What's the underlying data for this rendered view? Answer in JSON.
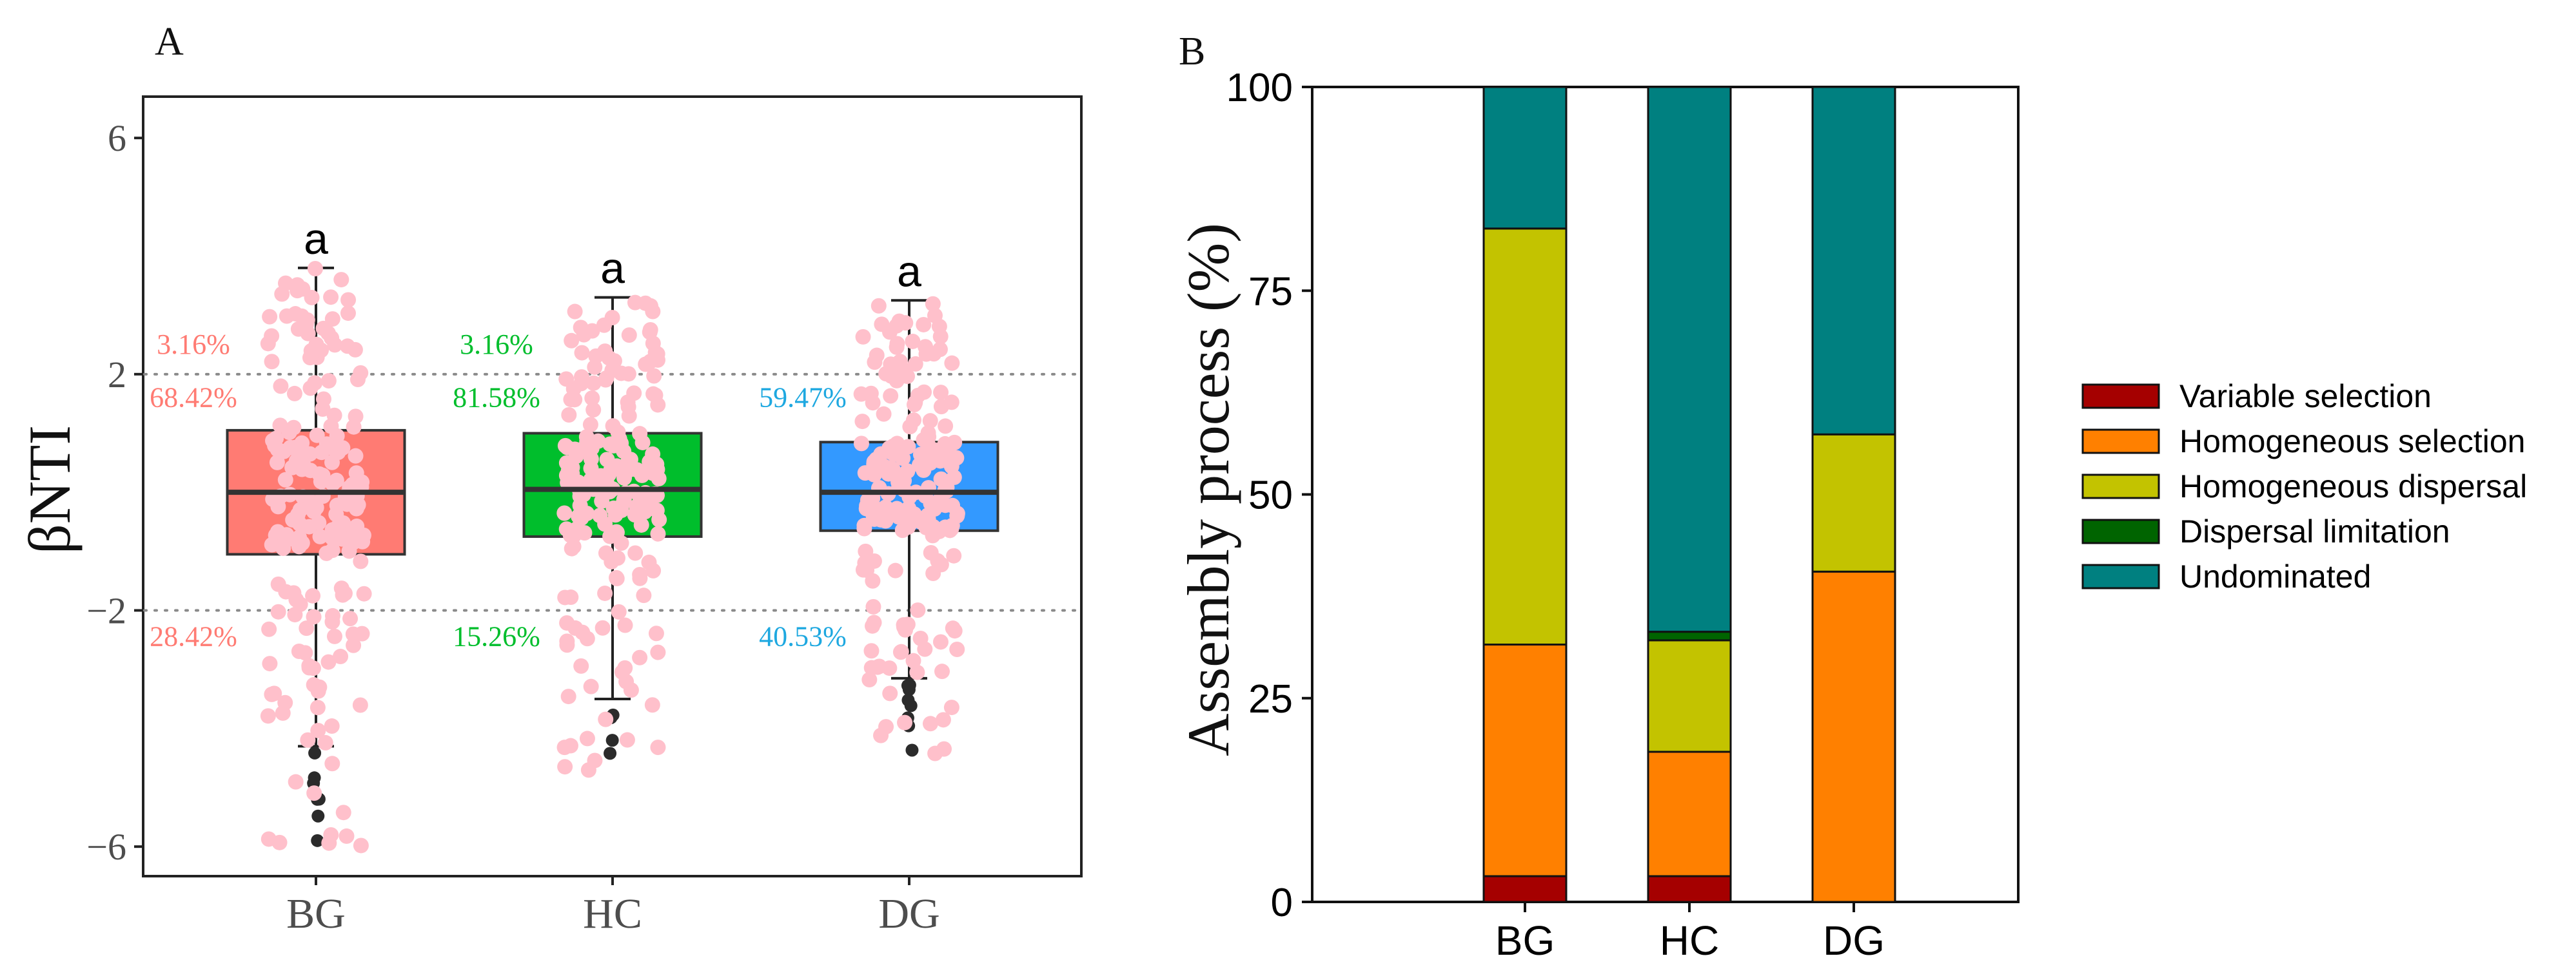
{
  "chart_data": [
    {
      "panel": "A",
      "type": "box",
      "ylabel": "βNTI",
      "ylim": [
        -6.5,
        6.7
      ],
      "yticks": [
        -6,
        -2,
        2,
        6
      ],
      "reference_lines": [
        2,
        -2
      ],
      "categories": [
        "BG",
        "HC",
        "DG"
      ],
      "colors": {
        "BG": "#ff7b73",
        "HC": "#00be2c",
        "DG": "#3399ff",
        "points": "#ffc0cb",
        "outliers": "#2b2b2b"
      },
      "boxes": [
        {
          "name": "BG",
          "whisker_low": -4.3,
          "q1": -1.05,
          "median": 0.0,
          "q3": 1.05,
          "whisker_high": 3.8,
          "sig": "a",
          "annotations": {
            "above": "3.16%",
            "middle": "68.42%",
            "below": "28.42%"
          }
        },
        {
          "name": "HC",
          "whisker_low": -3.5,
          "q1": -0.75,
          "median": 0.05,
          "q3": 1.0,
          "whisker_high": 3.3,
          "sig": "a",
          "annotations": {
            "above": "3.16%",
            "middle": "81.58%",
            "below": "15.26%"
          }
        },
        {
          "name": "DG",
          "whisker_low": -3.15,
          "q1": -0.65,
          "median": 0.0,
          "q3": 0.85,
          "whisker_high": 3.25,
          "sig": "a",
          "annotations": {
            "above": "",
            "middle": "59.47%",
            "below": "40.53%"
          }
        }
      ]
    },
    {
      "panel": "B",
      "type": "bar",
      "stacked": true,
      "ylabel": "Assembly process (%)",
      "ylim": [
        0,
        100
      ],
      "yticks": [
        0,
        25,
        50,
        75,
        100
      ],
      "categories": [
        "BG",
        "HC",
        "DG"
      ],
      "legend_position": "right",
      "series": [
        {
          "name": "Variable selection",
          "color": "#a50000",
          "values": [
            3.16,
            3.16,
            0
          ]
        },
        {
          "name": "Homogeneous selection",
          "color": "#ff8000",
          "values": [
            28.42,
            15.26,
            40.53
          ]
        },
        {
          "name": "Homogeneous dispersal",
          "color": "#c3c300",
          "values": [
            51.05,
            13.68,
            16.84
          ]
        },
        {
          "name": "Dispersal limitation",
          "color": "#006400",
          "values": [
            0,
            1.05,
            0
          ]
        },
        {
          "name": "Undominated",
          "color": "#008080",
          "values": [
            17.37,
            66.85,
            42.63
          ]
        }
      ]
    }
  ]
}
